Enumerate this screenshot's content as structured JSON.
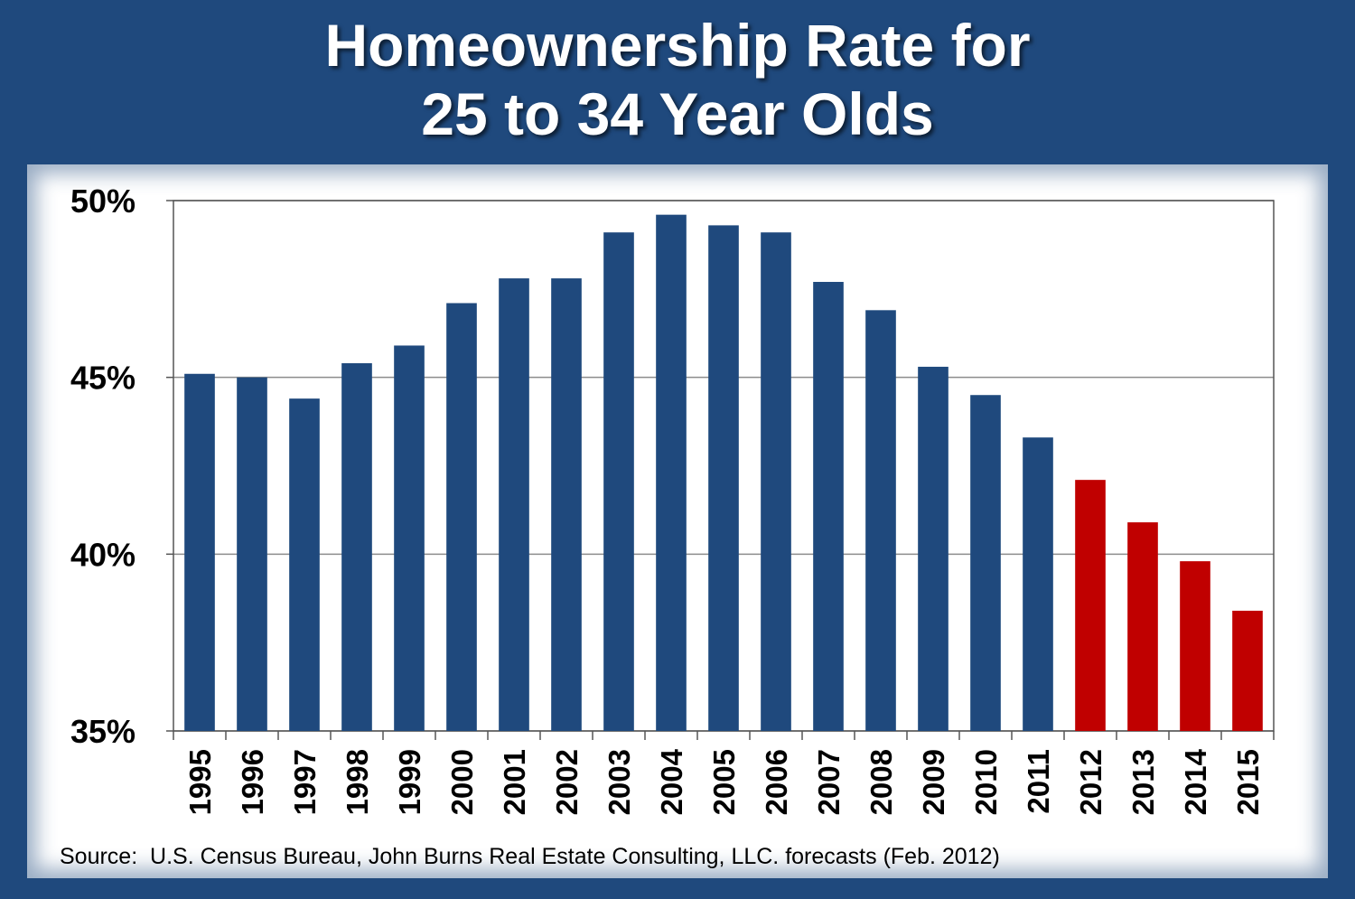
{
  "header": {
    "title_line1": "Homeownership Rate for",
    "title_line2": "25 to 34 Year Olds"
  },
  "footer": {
    "source": "Source:  U.S. Census Bureau, John Burns Real Estate Consulting, LLC. forecasts (Feb. 2012)"
  },
  "colors": {
    "background": "#1f497d",
    "historical_bar": "#1f497d",
    "forecast_bar": "#c00000"
  },
  "chart_data": {
    "type": "bar",
    "title": "Homeownership Rate for 25 to 34 Year Olds",
    "xlabel": "",
    "ylabel": "",
    "ylim": [
      35,
      50
    ],
    "yticks": [
      35,
      40,
      45,
      50
    ],
    "ytick_labels": [
      "35%",
      "40%",
      "45%",
      "50%"
    ],
    "grid": true,
    "categories": [
      "1995",
      "1996",
      "1997",
      "1998",
      "1999",
      "2000",
      "2001",
      "2002",
      "2003",
      "2004",
      "2005",
      "2006",
      "2007",
      "2008",
      "2009",
      "2010",
      "2011",
      "2012",
      "2013",
      "2014",
      "2015"
    ],
    "series": [
      {
        "values": [
          45.1,
          45.0,
          44.4,
          45.4,
          45.9,
          47.1,
          47.8,
          47.8,
          49.1,
          49.6,
          49.3,
          49.1,
          47.7,
          46.9,
          45.3,
          44.5,
          43.3,
          42.1,
          40.9,
          39.8,
          38.4
        ]
      }
    ],
    "forecast_from": "2012"
  }
}
